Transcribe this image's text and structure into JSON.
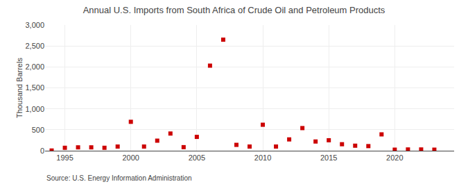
{
  "chart_data": {
    "type": "scatter",
    "title": "Annual U.S. Imports from South Africa of Crude Oil and Petroleum Products",
    "ylabel": "Thousand Barrels",
    "annotations": [
      "Source: U.S. Energy Information Administration"
    ],
    "x": [
      1994,
      1995,
      1996,
      1997,
      1998,
      1999,
      2000,
      2001,
      2002,
      2003,
      2004,
      2005,
      2006,
      2007,
      2008,
      2009,
      2010,
      2011,
      2012,
      2013,
      2014,
      2015,
      2016,
      2017,
      2018,
      2019,
      2020,
      2021,
      2022,
      2023
    ],
    "values": [
      5,
      70,
      80,
      80,
      70,
      100,
      690,
      100,
      240,
      410,
      85,
      330,
      2030,
      2650,
      140,
      100,
      620,
      100,
      270,
      540,
      220,
      250,
      155,
      120,
      110,
      390,
      25,
      30,
      30,
      25
    ],
    "color": "#cc0000",
    "marker": "square",
    "xlim": [
      1993.5,
      2024.5
    ],
    "xticks": [
      1995,
      2000,
      2005,
      2010,
      2015,
      2020
    ],
    "ylim": [
      0,
      3000
    ],
    "yticks": [
      0,
      500,
      {
        "value": 1000,
        "label": "1,000"
      },
      {
        "value": 1500,
        "label": "1,500"
      },
      {
        "value": 2000,
        "label": "2,000"
      },
      {
        "value": 2500,
        "label": "2,500"
      },
      {
        "value": 3000,
        "label": "3,000"
      }
    ],
    "grid": true
  }
}
